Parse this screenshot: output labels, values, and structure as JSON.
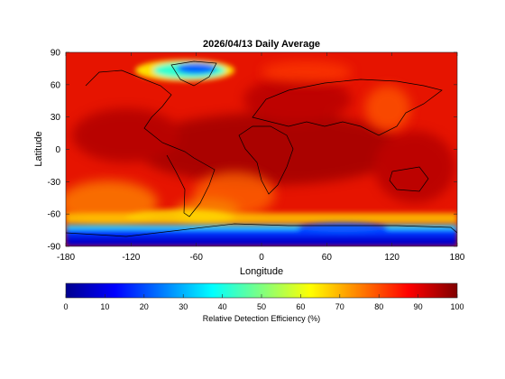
{
  "title": "2026/04/13 Daily Average",
  "map": {
    "xlabel": "Longitude",
    "ylabel": "Latitude",
    "x_ticks": [
      "-180",
      "-120",
      "-60",
      "0",
      "60",
      "120",
      "180"
    ],
    "y_ticks": [
      "90",
      "60",
      "30",
      "0",
      "-30",
      "-60",
      "-90"
    ],
    "xlim": [
      -180,
      180
    ],
    "ylim": [
      -90,
      90
    ],
    "coastlines": "black",
    "field": "Relative Detection Efficiency",
    "dominant_range_percent": [
      80,
      100
    ],
    "low_regions": [
      "Greenland",
      "Antarctica"
    ],
    "moderate_regions": [
      "South Atlantic",
      "Southern Ocean",
      "Western Pacific"
    ]
  },
  "colorbar": {
    "label": "Relative Detection Efficiency (%)",
    "ticks": [
      "0",
      "10",
      "20",
      "30",
      "40",
      "50",
      "60",
      "70",
      "80",
      "90",
      "100"
    ],
    "range": [
      0,
      100
    ],
    "colormap": "jet"
  }
}
